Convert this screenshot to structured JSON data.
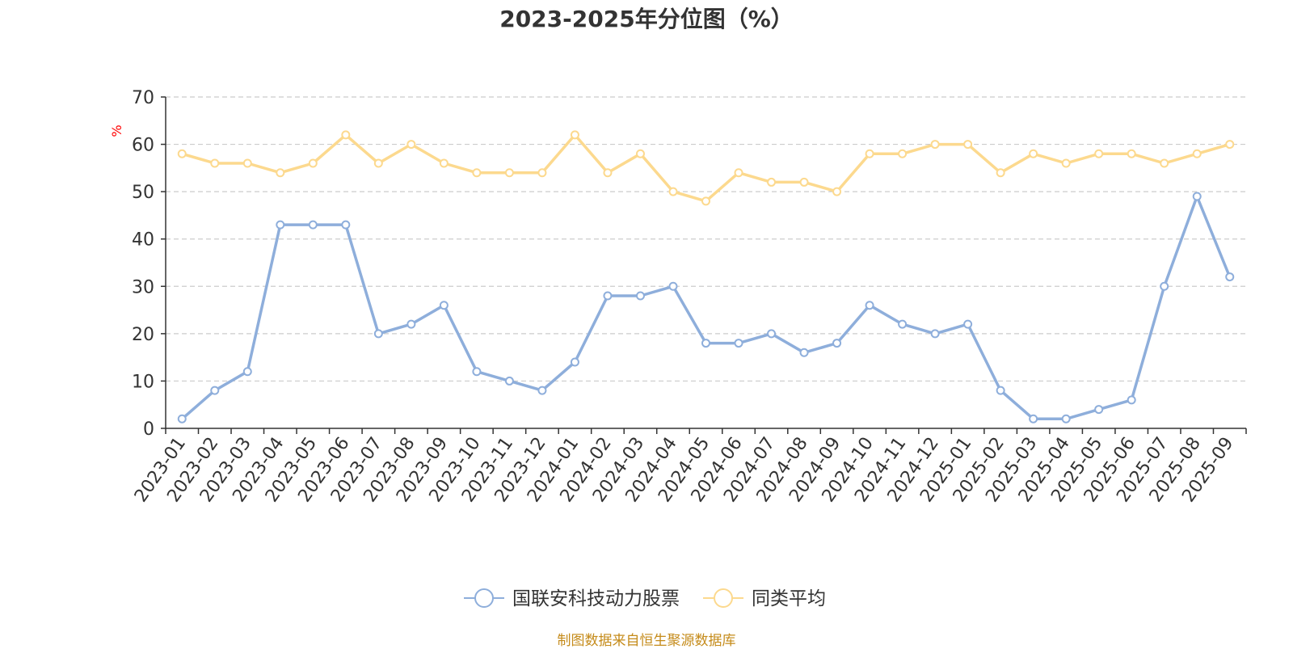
{
  "chart_data": {
    "type": "line",
    "title": "2023-2025年分位图（%）",
    "ylabel": "%",
    "xlabel": "",
    "ylim": [
      0,
      70
    ],
    "yticks": [
      0,
      10,
      20,
      30,
      40,
      50,
      60,
      70
    ],
    "grid": true,
    "legend_position": "bottom",
    "categories": [
      "2023-01",
      "2023-02",
      "2023-03",
      "2023-04",
      "2023-05",
      "2023-06",
      "2023-07",
      "2023-08",
      "2023-09",
      "2023-10",
      "2023-11",
      "2023-12",
      "2024-01",
      "2024-02",
      "2024-03",
      "2024-04",
      "2024-05",
      "2024-06",
      "2024-07",
      "2024-08",
      "2024-09",
      "2024-10",
      "2024-11",
      "2024-12",
      "2025-01",
      "2025-02",
      "2025-03",
      "2025-04",
      "2025-05",
      "2025-06",
      "2025-07",
      "2025-08",
      "2025-09"
    ],
    "series": [
      {
        "name": "国联安科技动力股票",
        "color": "#8eaedb",
        "values": [
          2,
          8,
          12,
          43,
          43,
          43,
          20,
          22,
          26,
          12,
          10,
          8,
          14,
          28,
          28,
          30,
          18,
          18,
          20,
          16,
          18,
          26,
          22,
          20,
          22,
          8,
          2,
          2,
          4,
          6,
          30,
          49,
          32
        ]
      },
      {
        "name": "同类平均",
        "color": "#fcd98e",
        "values": [
          58,
          56,
          56,
          54,
          56,
          62,
          56,
          60,
          56,
          54,
          54,
          54,
          62,
          54,
          58,
          50,
          48,
          54,
          52,
          52,
          50,
          58,
          58,
          60,
          60,
          54,
          58,
          56,
          58,
          58,
          56,
          58,
          60
        ]
      }
    ]
  },
  "source_text": "制图数据来自恒生聚源数据库"
}
